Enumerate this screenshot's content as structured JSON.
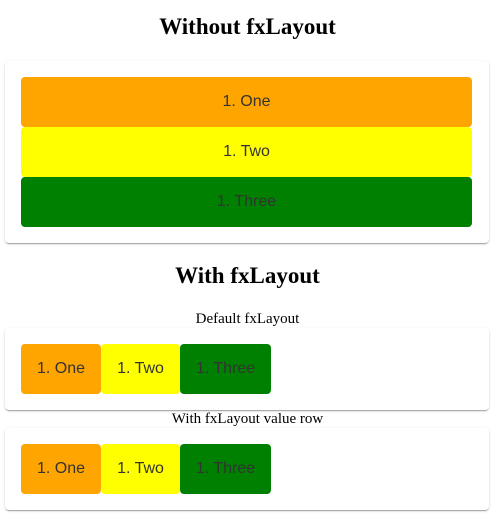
{
  "section1": {
    "title": "Without fxLayout",
    "items": [
      {
        "label": "1. One",
        "color": "#ffa500"
      },
      {
        "label": "1. Two",
        "color": "#ffff00"
      },
      {
        "label": "1. Three",
        "color": "#008000"
      }
    ]
  },
  "section2": {
    "title": "With fxLayout",
    "default_label": "Default fxLayout",
    "default_items": [
      {
        "label": "1. One",
        "color": "#ffa500"
      },
      {
        "label": "1. Two",
        "color": "#ffff00"
      },
      {
        "label": "1. Three",
        "color": "#008000"
      }
    ],
    "row_label": "With fxLayout value row",
    "row_items": [
      {
        "label": "1. One",
        "color": "#ffa500"
      },
      {
        "label": "1. Two",
        "color": "#ffff00"
      },
      {
        "label": "1. Three",
        "color": "#008000"
      }
    ]
  }
}
